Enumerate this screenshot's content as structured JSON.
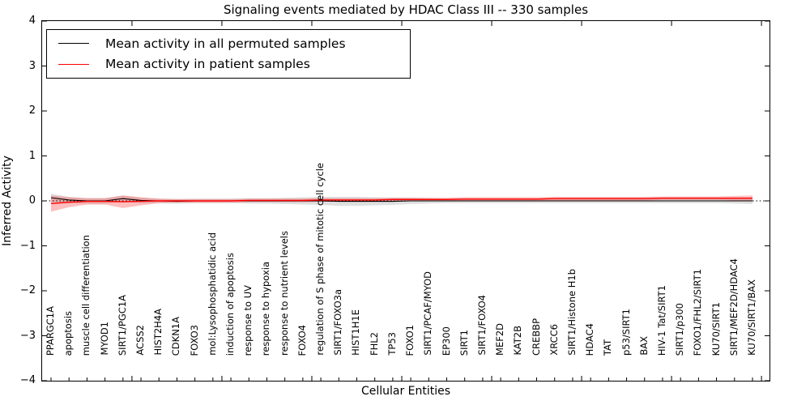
{
  "title": "Signaling events mediated by HDAC Class III -- 330 samples",
  "legend": {
    "items": [
      {
        "label": "Mean activity in all permuted samples",
        "color": "#000000"
      },
      {
        "label": "Mean activity in patient samples",
        "color": "#ff0000"
      }
    ]
  },
  "chart_data": {
    "type": "line",
    "title": "Signaling events mediated by HDAC Class III -- 330 samples",
    "xlabel": "Cellular Entities",
    "ylabel": "Inferred Activity",
    "ylim": [
      -4,
      4
    ],
    "grid": false,
    "zero_line": true,
    "legend_position": "upper left",
    "y_ticks": [
      {
        "label": "4",
        "value": 4
      },
      {
        "label": "3",
        "value": 3
      },
      {
        "label": "2",
        "value": 2
      },
      {
        "label": "1",
        "value": 1
      },
      {
        "label": "0",
        "value": 0
      },
      {
        "label": "−1",
        "value": -1
      },
      {
        "label": "−2",
        "value": -2
      },
      {
        "label": "−3",
        "value": -3
      },
      {
        "label": "−4",
        "value": -4
      }
    ],
    "categories": [
      "PPARGC1A",
      "apoptosis",
      "muscle cell differentiation",
      "MYOD1",
      "SIRT1/PGC1A",
      "ACSS2",
      "HIST2H4A",
      "CDKN1A",
      "FOXO3",
      "mol:Lysophosphatidic acid",
      "induction of apoptosis",
      "response to UV",
      "response to hypoxia",
      "response to nutrient levels",
      "FOXO4",
      "regulation of S phase of mitotic cell cycle",
      "SIRT1/FOXO3a",
      "HIST1H1E",
      "FHL2",
      "TP53",
      "FOXO1",
      "SIRT1/PCAF/MYOD",
      "EP300",
      "SIRT1",
      "SIRT1/FOXO4",
      "MEF2D",
      "KAT2B",
      "CREBBP",
      "XRCC6",
      "SIRT1/Histone H1b",
      "HDAC4",
      "TAT",
      "p53/SIRT1",
      "BAX",
      "HIV-1 Tat/SIRT1",
      "SIRT1/p300",
      "FOXO1/FHL2/SIRT1",
      "KU70/SIRT1",
      "SIRT1/MEF2D/HDAC4",
      "KU70/SIRT1/BAX"
    ],
    "series": [
      {
        "name": "Mean activity in all permuted samples",
        "color": "#000000",
        "line_width": 1.1,
        "values": [
          0.07,
          0.02,
          0.0,
          0.0,
          0.05,
          0.01,
          0.0,
          -0.01,
          0.0,
          0.0,
          0.0,
          0.0,
          0.0,
          0.0,
          0.0,
          0.0,
          -0.01,
          -0.01,
          -0.01,
          -0.01,
          0.0,
          0.0,
          0.0,
          0.0,
          0.0,
          0.0,
          0.0,
          0.0,
          0.0,
          0.0,
          0.0,
          0.0,
          0.0,
          0.0,
          0.0,
          0.0,
          0.0,
          0.0,
          0.0,
          0.0
        ],
        "band_color": "rgba(150,150,150,0.30)",
        "band_half_width": [
          0.09,
          0.07,
          0.06,
          0.06,
          0.07,
          0.06,
          0.05,
          0.05,
          0.05,
          0.05,
          0.05,
          0.06,
          0.06,
          0.07,
          0.08,
          0.09,
          0.1,
          0.1,
          0.09,
          0.08,
          0.07,
          0.06,
          0.05,
          0.05,
          0.05,
          0.05,
          0.05,
          0.05,
          0.05,
          0.05,
          0.05,
          0.05,
          0.05,
          0.05,
          0.05,
          0.05,
          0.05,
          0.05,
          0.06,
          0.07
        ]
      },
      {
        "name": "Mean activity in patient samples",
        "color": "#ff0000",
        "line_width": 1.4,
        "values": [
          -0.06,
          -0.03,
          -0.01,
          -0.01,
          -0.02,
          -0.01,
          0.0,
          0.0,
          0.0,
          0.0,
          0.0,
          0.01,
          0.01,
          0.01,
          0.01,
          0.02,
          0.02,
          0.02,
          0.02,
          0.03,
          0.03,
          0.03,
          0.03,
          0.04,
          0.04,
          0.04,
          0.04,
          0.04,
          0.05,
          0.05,
          0.05,
          0.05,
          0.05,
          0.05,
          0.06,
          0.06,
          0.06,
          0.06,
          0.06,
          0.06
        ],
        "band_color": "rgba(255,40,40,0.30)",
        "band_half_width": [
          0.18,
          0.11,
          0.07,
          0.07,
          0.14,
          0.09,
          0.05,
          0.04,
          0.04,
          0.04,
          0.04,
          0.04,
          0.04,
          0.04,
          0.04,
          0.04,
          0.04,
          0.04,
          0.04,
          0.04,
          0.04,
          0.04,
          0.04,
          0.04,
          0.04,
          0.04,
          0.04,
          0.04,
          0.04,
          0.04,
          0.04,
          0.04,
          0.04,
          0.04,
          0.04,
          0.04,
          0.04,
          0.04,
          0.05,
          0.06
        ]
      }
    ]
  }
}
